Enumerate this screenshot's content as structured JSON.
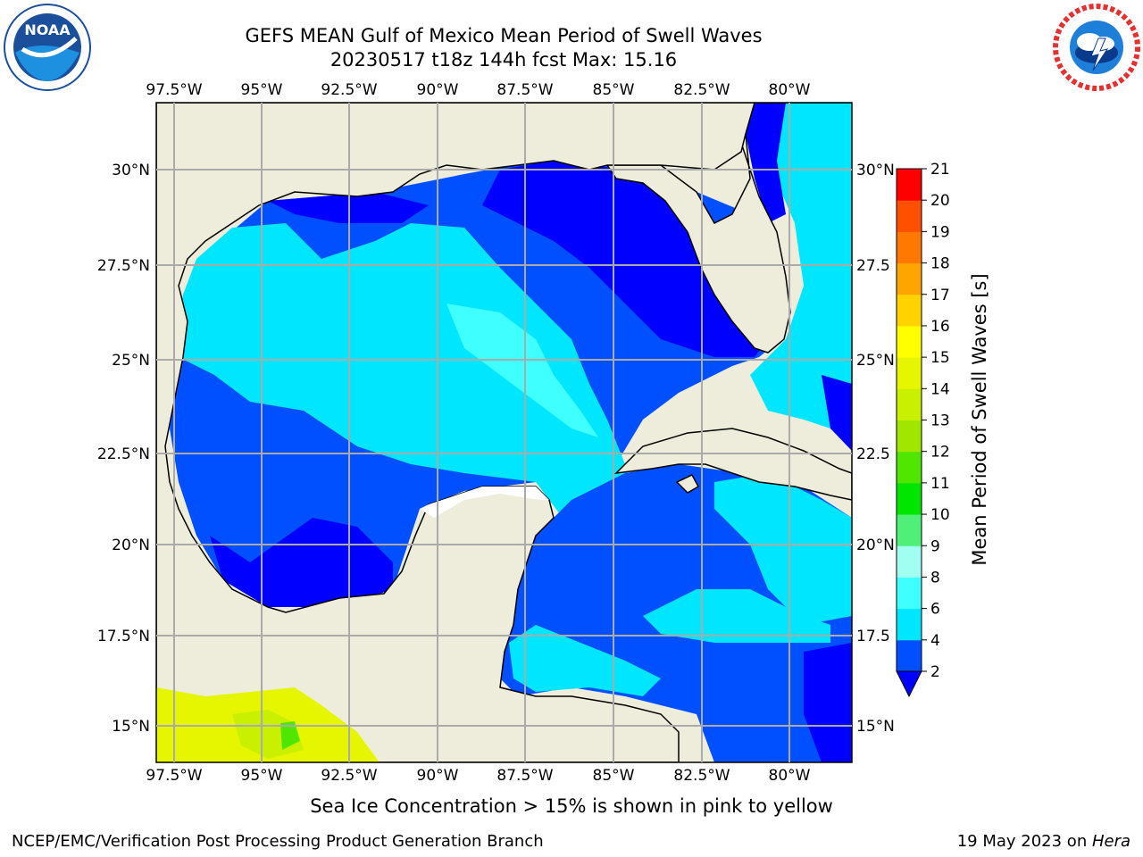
{
  "title": {
    "line1": "GEFS MEAN Gulf of Mexico Mean Period of Swell Waves",
    "line2": "20230517 t18z 144h fcst   Max: 15.16"
  },
  "map": {
    "lon_labels": [
      "97.5°W",
      "95°W",
      "92.5°W",
      "90°W",
      "87.5°W",
      "85°W",
      "82.5°W",
      "80°W"
    ],
    "lat_labels_left": [
      "30°N",
      "27.5°N",
      "25°N",
      "22.5°N",
      "20°N",
      "17.5°N",
      "15°N"
    ],
    "lat_labels_right": [
      "30°N",
      "27.5",
      "25°N",
      "22.5",
      "20°N",
      "17.5",
      "15°N"
    ]
  },
  "colorbar": {
    "label": "Mean Period of Swell Waves [s]",
    "ticks": [
      "2",
      "4",
      "6",
      "8",
      "9",
      "10",
      "11",
      "12",
      "13",
      "14",
      "15",
      "16",
      "17",
      "18",
      "19",
      "20",
      "21"
    ],
    "colors": [
      "#0050ff",
      "#00e6ff",
      "#40ffff",
      "#a0fff0",
      "#50f078",
      "#00e600",
      "#50e600",
      "#a0e600",
      "#c8f000",
      "#e6f500",
      "#ffff00",
      "#ffd200",
      "#ffa500",
      "#ff7800",
      "#ff5000",
      "#ff0000"
    ],
    "underflow_color": "#0000ff"
  },
  "ice_note": "Sea Ice Concentration > 15% is shown in pink to yellow",
  "footer": {
    "credit": "NCEP/EMC/Verification Post Processing Product Generation Branch",
    "date_prefix": "19 May 2023 on ",
    "machine": "Hera"
  },
  "logos": {
    "left": "NOAA",
    "right_icon": "national-weather-service-logo"
  },
  "colors": {
    "land": "#eeeddc",
    "grid": "#aaaaaa"
  }
}
